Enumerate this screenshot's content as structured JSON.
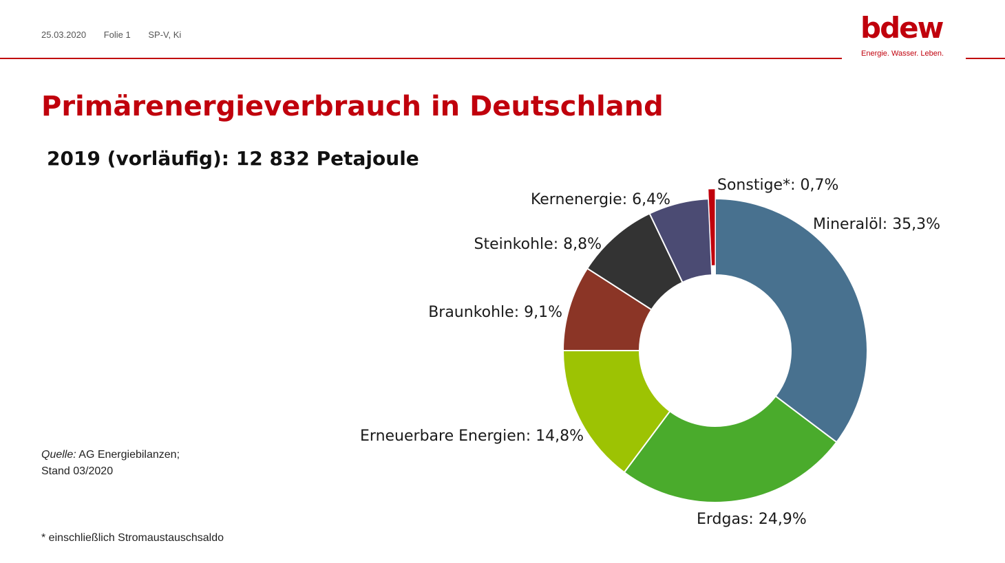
{
  "header": {
    "date": "25.03.2020",
    "slide": "Folie 1",
    "author": "SP-V, Ki"
  },
  "logo": {
    "word": "bdew",
    "tagline": "Energie. Wasser. Leben."
  },
  "title": "Primärenergieverbrauch in Deutschland",
  "subtitle": "2019 (vorläufig): 12 832 Petajoule",
  "source": {
    "label": "Quelle:",
    "text": " AG Energiebilanzen;",
    "stand": "Stand 03/2020"
  },
  "footnote": "* einschließlich Stromaustauschsaldo",
  "chart_data": {
    "type": "donut",
    "unit": "%",
    "slices": [
      {
        "label": "Mineralöl",
        "value": 35.3,
        "display": "Mineralöl: 35,3%",
        "color": "#48718f"
      },
      {
        "label": "Erdgas",
        "value": 24.9,
        "display": "Erdgas: 24,9%",
        "color": "#4aab2c"
      },
      {
        "label": "Erneuerbare Energien",
        "value": 14.8,
        "display": "Erneuerbare Energien: 14,8%",
        "color": "#9dc303"
      },
      {
        "label": "Braunkohle",
        "value": 9.1,
        "display": "Braunkohle: 9,1%",
        "color": "#8b3526"
      },
      {
        "label": "Steinkohle",
        "value": 8.8,
        "display": "Steinkohle: 8,8%",
        "color": "#333333"
      },
      {
        "label": "Kernenergie",
        "value": 6.4,
        "display": "Kernenergie: 6,4%",
        "color": "#4b4b73"
      },
      {
        "label": "Sonstige*",
        "value": 0.7,
        "display": "Sonstige*: 0,7%",
        "color": "#c0000c"
      }
    ]
  }
}
